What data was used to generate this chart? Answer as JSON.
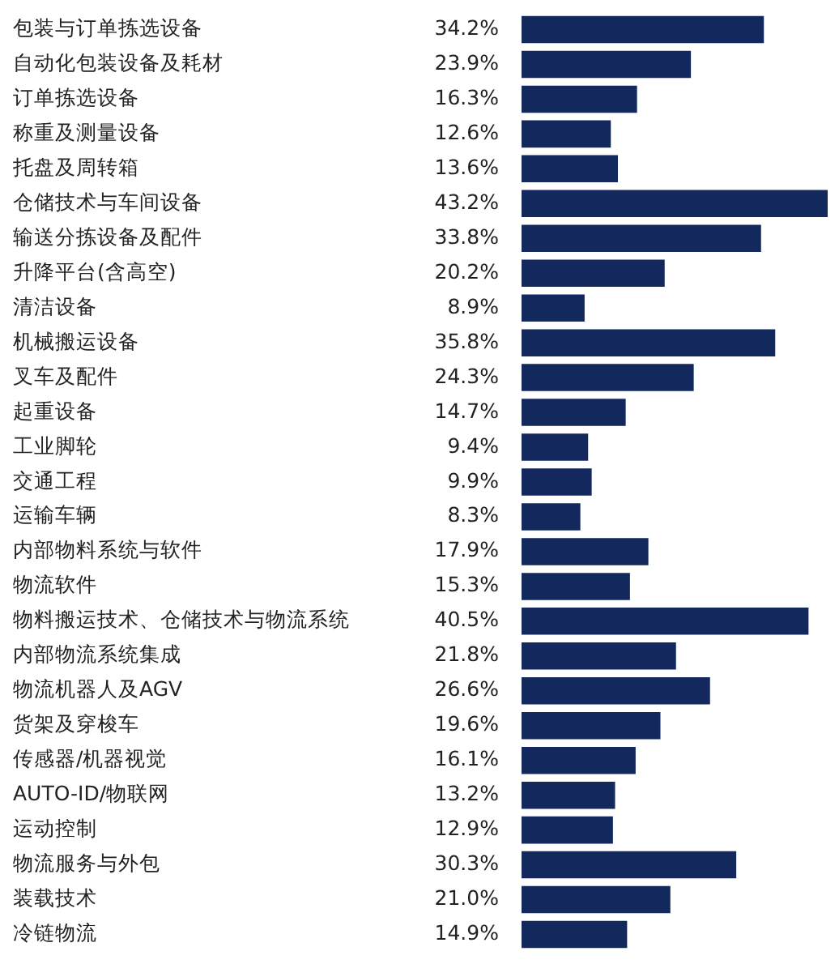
{
  "chart_data": {
    "type": "bar",
    "orientation": "horizontal",
    "color": "#13295e",
    "grid": false,
    "legend": false,
    "categories": [
      "包装与订单拣选设备",
      "自动化包装设备及耗材",
      "订单拣选设备",
      "称重及测量设备",
      "托盘及周转箱",
      "仓储技术与车间设备",
      "输送分拣设备及配件",
      "升降平台(含高空)",
      "清洁设备",
      "机械搬运设备",
      "叉车及配件",
      "起重设备",
      "工业脚轮",
      "交通工程",
      "运输车辆",
      "内部物料系统与软件",
      "物流软件",
      "物料搬运技术、仓储技术与物流系统",
      "内部物流系统集成",
      "物流机器人及AGV",
      "货架及穿梭车",
      "传感器/机器视觉",
      "AUTO-ID/物联网",
      "运动控制",
      "物流服务与外包",
      "装载技术",
      "冷链物流"
    ],
    "values": [
      34.2,
      23.9,
      16.3,
      12.6,
      13.6,
      43.2,
      33.8,
      20.2,
      8.9,
      35.8,
      24.3,
      14.7,
      9.4,
      9.9,
      8.3,
      17.9,
      15.3,
      40.5,
      21.8,
      26.6,
      19.6,
      16.1,
      13.2,
      12.9,
      30.3,
      21.0,
      14.9
    ],
    "value_labels": [
      "34.2%",
      "23.9%",
      "16.3%",
      "12.6%",
      "13.6%",
      "43.2%",
      "33.8%",
      "20.2%",
      "8.9%",
      "35.8%",
      "24.3%",
      "14.7%",
      "9.4%",
      "9.9%",
      "8.3%",
      "17.9%",
      "15.3%",
      "40.5%",
      "21.8%",
      "26.6%",
      "19.6%",
      "16.1%",
      "13.2%",
      "12.9%",
      "30.3%",
      "21.0%",
      "14.9%"
    ]
  }
}
